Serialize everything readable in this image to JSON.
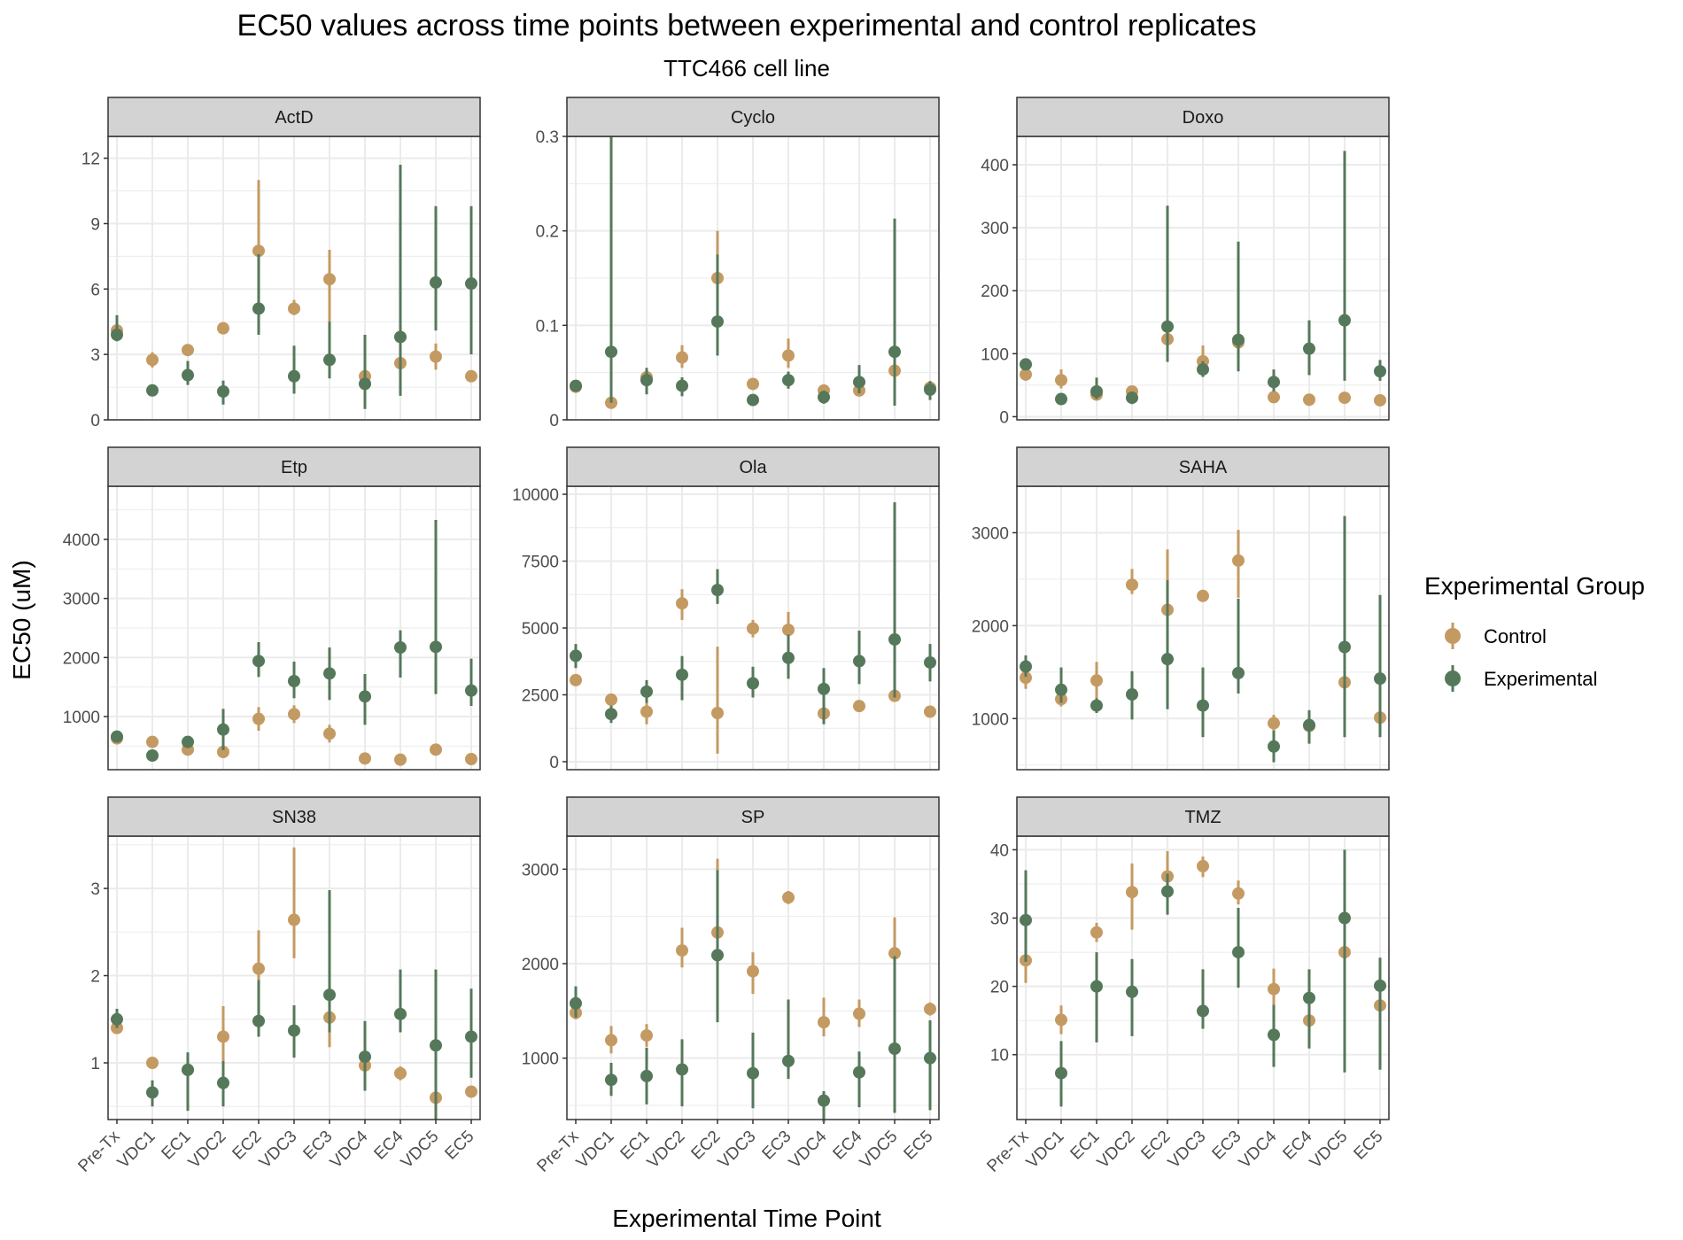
{
  "title": "EC50 values across time points between experimental and control replicates",
  "subtitle": "TTC466 cell line",
  "xlabel": "Experimental Time Point",
  "ylabel": "EC50 (uM)",
  "legend": {
    "title": "Experimental Group",
    "position": "right",
    "entries": [
      "Control",
      "Experimental"
    ]
  },
  "colors": {
    "Control": "#c49a63",
    "Experimental": "#55785a",
    "strip": "#d3d3d3",
    "grid": "#ebebeb"
  },
  "chart_data": {
    "type": "pointrange",
    "facets": "3x3",
    "categories": [
      "Pre-Tx",
      "VDC1",
      "EC1",
      "VDC2",
      "EC2",
      "VDC3",
      "EC3",
      "VDC4",
      "EC4",
      "VDC5",
      "EC5"
    ],
    "panels": [
      {
        "name": "ActD",
        "ylim": [
          0,
          13
        ],
        "yticks": [
          0,
          3,
          6,
          9,
          12
        ],
        "series": [
          {
            "name": "Control",
            "values": [
              4.1,
              2.75,
              3.2,
              4.2,
              7.75,
              5.1,
              6.45,
              2.0,
              2.6,
              2.9,
              2.0
            ],
            "low": [
              3.9,
              2.4,
              3.0,
              4.05,
              5.1,
              4.8,
              4.4,
              1.8,
              2.3,
              2.3,
              1.9
            ],
            "high": [
              4.3,
              3.1,
              3.35,
              4.35,
              11.0,
              5.5,
              7.8,
              2.2,
              2.9,
              3.5,
              2.1
            ]
          },
          {
            "name": "Experimental",
            "values": [
              3.9,
              1.35,
              2.05,
              1.3,
              5.1,
              2.0,
              2.75,
              1.65,
              3.8,
              6.3,
              6.25
            ],
            "low": [
              3.6,
              1.1,
              1.6,
              0.7,
              3.9,
              1.2,
              1.9,
              0.5,
              1.1,
              4.1,
              3.0
            ],
            "high": [
              4.8,
              1.6,
              2.7,
              1.8,
              7.6,
              3.4,
              4.5,
              3.9,
              11.7,
              9.8,
              9.8
            ]
          }
        ]
      },
      {
        "name": "Cyclo",
        "ylim": [
          0,
          0.3
        ],
        "yticks": [
          0,
          0.1,
          0.2,
          0.3
        ],
        "series": [
          {
            "name": "Control",
            "values": [
              0.035,
              0.018,
              0.045,
              0.066,
              0.15,
              0.038,
              0.068,
              0.031,
              0.031,
              0.052,
              0.034
            ],
            "low": [
              0.031,
              0.014,
              0.041,
              0.055,
              0.12,
              0.035,
              0.055,
              0.026,
              0.026,
              0.042,
              0.03
            ],
            "high": [
              0.039,
              0.022,
              0.049,
              0.079,
              0.2,
              0.041,
              0.086,
              0.036,
              0.036,
              0.062,
              0.038
            ]
          },
          {
            "name": "Experimental",
            "values": [
              0.036,
              0.072,
              0.042,
              0.036,
              0.104,
              0.021,
              0.042,
              0.024,
              0.04,
              0.072,
              0.032
            ],
            "low": [
              0.032,
              0.018,
              0.027,
              0.025,
              0.068,
              0.016,
              0.033,
              0.017,
              0.028,
              0.015,
              0.021
            ],
            "high": [
              0.04,
              0.3,
              0.055,
              0.045,
              0.175,
              0.026,
              0.051,
              0.031,
              0.058,
              0.213,
              0.041
            ]
          }
        ]
      },
      {
        "name": "Doxo",
        "ylim": [
          -5,
          445
        ],
        "yticks": [
          0,
          100,
          200,
          300,
          400
        ],
        "series": [
          {
            "name": "Control",
            "values": [
              67,
              58,
              35,
              40,
              123,
              88,
              118,
              31,
              27,
              30,
              26
            ],
            "low": [
              57,
              45,
              31,
              34,
              103,
              75,
              105,
              27,
              24,
              27,
              23
            ],
            "high": [
              77,
              75,
              39,
              46,
              143,
              113,
              131,
              35,
              30,
              33,
              29
            ]
          },
          {
            "name": "Experimental",
            "values": [
              83,
              28,
              40,
              30,
              143,
              75,
              122,
              55,
              108,
              153,
              72
            ],
            "low": [
              74,
              21,
              28,
              20,
              87,
              63,
              72,
              40,
              66,
              57,
              57
            ],
            "high": [
              92,
              35,
              62,
              40,
              335,
              88,
              278,
              75,
              153,
              422,
              90
            ]
          }
        ]
      },
      {
        "name": "Etp",
        "ylim": [
          100,
          4900
        ],
        "yticks": [
          1000,
          2000,
          3000,
          4000
        ],
        "series": [
          {
            "name": "Control",
            "values": [
              630,
              570,
              440,
              400,
              960,
              1040,
              710,
              290,
              270,
              440,
              280
            ],
            "low": [
              580,
              520,
              370,
              320,
              760,
              890,
              560,
              250,
              230,
              340,
              240
            ],
            "high": [
              680,
              620,
              510,
              480,
              1160,
              1190,
              860,
              330,
              310,
              540,
              320
            ]
          },
          {
            "name": "Experimental",
            "values": [
              660,
              340,
              570,
              780,
              1940,
              1600,
              1730,
              1340,
              2170,
              2180,
              1440
            ],
            "low": [
              610,
              290,
              530,
              430,
              1670,
              1310,
              1280,
              860,
              1660,
              1380,
              1180
            ],
            "high": [
              710,
              390,
              610,
              1130,
              2260,
              1930,
              2170,
              1720,
              2460,
              4330,
              1980
            ]
          }
        ]
      },
      {
        "name": "Ola",
        "ylim": [
          -300,
          10300
        ],
        "yticks": [
          0,
          2500,
          5000,
          7500,
          10000
        ],
        "series": [
          {
            "name": "Control",
            "values": [
              3050,
              2320,
              1870,
              5920,
              1820,
              4980,
              4930,
              1800,
              2080,
              2460,
              1870
            ],
            "low": [
              2900,
              2100,
              1400,
              5300,
              300,
              4650,
              4100,
              1600,
              1950,
              2250,
              1700
            ],
            "high": [
              3200,
              2540,
              2300,
              6450,
              4300,
              5300,
              5600,
              2000,
              2210,
              2670,
              2040
            ]
          },
          {
            "name": "Experimental",
            "values": [
              3960,
              1780,
              2620,
              3250,
              6420,
              2930,
              3880,
              2720,
              3760,
              4570,
              3710
            ],
            "low": [
              3500,
              1450,
              2200,
              2300,
              5900,
              2400,
              3100,
              1400,
              2900,
              2400,
              3000
            ],
            "high": [
              4400,
              2100,
              3050,
              3950,
              7200,
              3550,
              4750,
              3500,
              4900,
              9700,
              4400
            ]
          }
        ]
      },
      {
        "name": "SAHA",
        "ylim": [
          450,
          3500
        ],
        "yticks": [
          1000,
          2000,
          3000
        ],
        "series": [
          {
            "name": "Control",
            "values": [
              1440,
              1210,
              1410,
              2440,
              2170,
              2320,
              2700,
              950,
              920,
              1390,
              1010
            ],
            "low": [
              1320,
              1130,
              1210,
              2340,
              1850,
              2270,
              2300,
              860,
              830,
              1300,
              930
            ],
            "high": [
              1560,
              1290,
              1610,
              2610,
              2820,
              2370,
              3030,
              1040,
              1010,
              1480,
              1090
            ]
          },
          {
            "name": "Experimental",
            "values": [
              1560,
              1310,
              1140,
              1260,
              1640,
              1140,
              1490,
              700,
              930,
              1770,
              1430
            ],
            "low": [
              1450,
              1170,
              1060,
              990,
              1100,
              800,
              1270,
              530,
              730,
              800,
              800
            ],
            "high": [
              1680,
              1550,
              1220,
              1510,
              2490,
              1550,
              2290,
              870,
              1090,
              3180,
              2330
            ]
          }
        ]
      },
      {
        "name": "SN38",
        "ylim": [
          0.35,
          3.6
        ],
        "yticks": [
          1,
          2,
          3
        ],
        "series": [
          {
            "name": "Control",
            "values": [
              1.4,
              1.0,
              0.92,
              1.3,
              2.08,
              2.64,
              1.52,
              0.97,
              0.88,
              0.6,
              0.67
            ],
            "low": [
              1.35,
              0.93,
              0.85,
              0.95,
              1.65,
              2.2,
              1.18,
              0.9,
              0.8,
              0.55,
              0.62
            ],
            "high": [
              1.45,
              1.07,
              0.99,
              1.65,
              2.52,
              3.47,
              1.86,
              1.04,
              0.96,
              0.65,
              0.72
            ]
          },
          {
            "name": "Experimental",
            "values": [
              1.5,
              0.66,
              0.92,
              0.77,
              1.48,
              1.37,
              1.78,
              1.07,
              1.56,
              1.2,
              1.3
            ],
            "low": [
              1.4,
              0.5,
              0.45,
              0.5,
              1.3,
              1.06,
              1.35,
              0.68,
              1.35,
              0.35,
              0.83
            ],
            "high": [
              1.62,
              0.8,
              1.12,
              1.02,
              1.95,
              1.66,
              2.98,
              1.48,
              2.07,
              2.07,
              1.85
            ]
          }
        ]
      },
      {
        "name": "SP",
        "ylim": [
          350,
          3350
        ],
        "yticks": [
          1000,
          2000,
          3000
        ],
        "series": [
          {
            "name": "Control",
            "values": [
              1480,
              1190,
              1240,
              2140,
              2330,
              1920,
              2700,
              1380,
              1470,
              2110,
              1520
            ],
            "low": [
              1410,
              1050,
              1120,
              1960,
              1950,
              1680,
              2630,
              1230,
              1330,
              1820,
              1450
            ],
            "high": [
              1550,
              1340,
              1360,
              2380,
              3110,
              2120,
              2770,
              1640,
              1620,
              2490,
              1590
            ]
          },
          {
            "name": "Experimental",
            "values": [
              1580,
              770,
              810,
              880,
              2090,
              840,
              970,
              550,
              850,
              1100,
              1000
            ],
            "low": [
              1430,
              600,
              510,
              490,
              1380,
              470,
              780,
              320,
              480,
              420,
              450
            ],
            "high": [
              1760,
              950,
              1110,
              1200,
              2990,
              1270,
              1620,
              650,
              1070,
              2080,
              1400
            ]
          }
        ]
      },
      {
        "name": "TMZ",
        "ylim": [
          0.5,
          42
        ],
        "yticks": [
          10,
          20,
          30,
          40
        ],
        "series": [
          {
            "name": "Control",
            "values": [
              23.8,
              15.1,
              27.9,
              33.8,
              36.1,
              37.6,
              33.6,
              19.6,
              15.0,
              25.0,
              17.2
            ],
            "low": [
              20.5,
              13.0,
              26.5,
              28.3,
              33.5,
              36.0,
              32.0,
              17.2,
              12.0,
              22.5,
              15.5
            ],
            "high": [
              27.0,
              17.2,
              29.3,
              38.0,
              39.8,
              39.0,
              35.5,
              22.6,
              18.0,
              27.5,
              19.0
            ]
          },
          {
            "name": "Experimental",
            "values": [
              29.7,
              7.3,
              20.0,
              19.2,
              33.9,
              16.4,
              25.0,
              12.9,
              18.3,
              30.0,
              20.1
            ],
            "low": [
              23.6,
              2.4,
              11.8,
              12.7,
              30.5,
              13.8,
              19.8,
              8.2,
              10.9,
              7.4,
              7.8
            ],
            "high": [
              37.0,
              12.0,
              25.0,
              24.0,
              36.5,
              22.5,
              31.5,
              17.3,
              22.5,
              40.0,
              24.2
            ]
          }
        ]
      }
    ]
  }
}
